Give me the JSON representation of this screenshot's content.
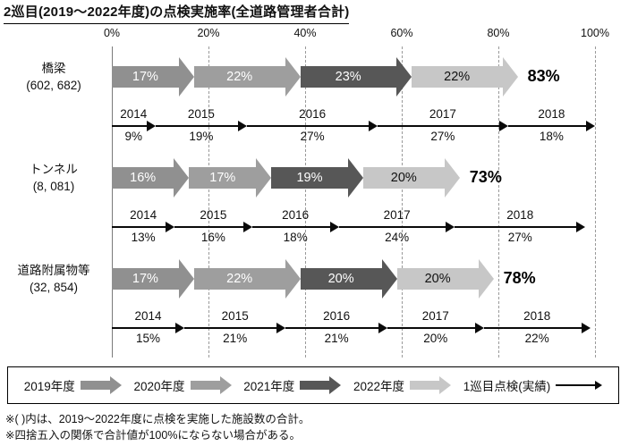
{
  "title": "2巡目(2019～2022年度)の点検実施率(全道路管理者合計)",
  "footnotes": [
    "※( )内は、2019～2022年度に点検を実施した施設数の合計。",
    "※四捨五入の関係で合計値が100%にならない場合がある。"
  ],
  "chart_data": {
    "type": "bar",
    "subtype": "horizontal-stacked-arrow",
    "x_axis": {
      "ticks": [
        "0%",
        "20%",
        "40%",
        "60%",
        "80%",
        "100%"
      ],
      "min": 0,
      "max": 100,
      "grid": "dashed-vertical"
    },
    "series": [
      {
        "name": "2019年度",
        "color": "#909090",
        "text_color": "#ffffff"
      },
      {
        "name": "2020年度",
        "color": "#9e9e9e",
        "text_color": "#ffffff"
      },
      {
        "name": "2021年度",
        "color": "#575757",
        "text_color": "#ffffff"
      },
      {
        "name": "2022年度",
        "color": "#c7c7c7",
        "text_color": "#111111"
      }
    ],
    "first_round": {
      "name": "1巡目点検(実績)",
      "years": [
        "2014",
        "2015",
        "2016",
        "2017",
        "2018"
      ]
    },
    "groups": [
      {
        "name": "橋梁",
        "count": "(602, 682)",
        "second_round_values": [
          17,
          22,
          23,
          22
        ],
        "total_label": "83%",
        "first_round_values": [
          9,
          19,
          27,
          27,
          18
        ]
      },
      {
        "name": "トンネル",
        "count": "(8, 081)",
        "second_round_values": [
          16,
          17,
          19,
          20
        ],
        "total_label": "73%",
        "first_round_values": [
          13,
          16,
          18,
          24,
          27
        ]
      },
      {
        "name": "道路附属物等",
        "count": "(32, 854)",
        "second_round_values": [
          17,
          22,
          20,
          20
        ],
        "total_label": "78%",
        "first_round_values": [
          15,
          21,
          21,
          20,
          22
        ]
      }
    ],
    "value_suffix": "%",
    "legend_position": "bottom"
  }
}
